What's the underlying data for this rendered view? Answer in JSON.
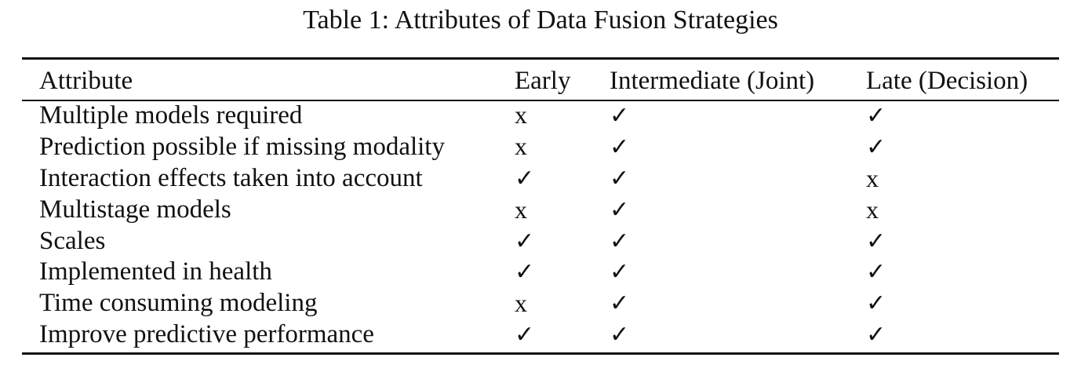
{
  "caption": "Table 1: Attributes of Data Fusion Strategies",
  "columns": [
    "Attribute",
    "Early",
    "Intermediate (Joint)",
    "Late (Decision)"
  ],
  "rows": [
    {
      "attribute": "Multiple models required",
      "early": "x",
      "intermediate": "✓",
      "late": "✓"
    },
    {
      "attribute": "Prediction possible if missing modality",
      "early": "x",
      "intermediate": "✓",
      "late": "✓"
    },
    {
      "attribute": "Interaction effects taken into account",
      "early": "✓",
      "intermediate": "✓",
      "late": "x"
    },
    {
      "attribute": "Multistage models",
      "early": "x",
      "intermediate": "✓",
      "late": "x"
    },
    {
      "attribute": "Scales",
      "early": "✓",
      "intermediate": "✓",
      "late": "✓"
    },
    {
      "attribute": "Implemented in health",
      "early": "✓",
      "intermediate": "✓",
      "late": "✓"
    },
    {
      "attribute": "Time consuming modeling",
      "early": "x",
      "intermediate": "✓",
      "late": "✓"
    },
    {
      "attribute": "Improve predictive performance",
      "early": "✓",
      "intermediate": "✓",
      "late": "✓"
    }
  ]
}
